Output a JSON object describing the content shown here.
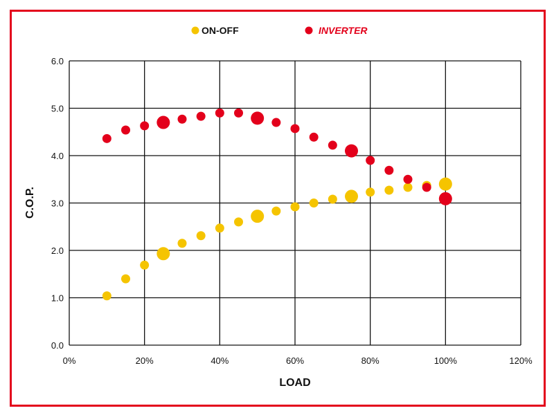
{
  "chart_data": {
    "type": "scatter",
    "xlabel": "LOAD",
    "ylabel": "C.O.P.",
    "xlim": [
      0,
      120
    ],
    "ylim": [
      0,
      6
    ],
    "x_ticks": [
      "0%",
      "20%",
      "40%",
      "60%",
      "80%",
      "100%",
      "120%"
    ],
    "y_ticks": [
      "0.0",
      "1.0",
      "2.0",
      "3.0",
      "4.0",
      "5.0",
      "6.0"
    ],
    "grid": true,
    "legend": "top",
    "big_marker_x": [
      25,
      50,
      75,
      100
    ],
    "series": [
      {
        "name": "ON-OFF",
        "color": "#f5c400",
        "x": [
          10,
          15,
          20,
          25,
          30,
          35,
          40,
          45,
          50,
          55,
          60,
          65,
          70,
          75,
          80,
          85,
          90,
          95,
          100
        ],
        "y": [
          1.04,
          1.4,
          1.69,
          1.93,
          2.15,
          2.31,
          2.47,
          2.6,
          2.72,
          2.83,
          2.92,
          3.0,
          3.08,
          3.14,
          3.23,
          3.27,
          3.33,
          3.37,
          3.4
        ]
      },
      {
        "name": "INVERTER",
        "color": "#e3001b",
        "x": [
          10,
          15,
          20,
          25,
          30,
          35,
          40,
          45,
          50,
          55,
          60,
          65,
          70,
          75,
          80,
          85,
          90,
          95,
          100
        ],
        "y": [
          4.36,
          4.54,
          4.63,
          4.7,
          4.77,
          4.83,
          4.9,
          4.9,
          4.79,
          4.7,
          4.57,
          4.39,
          4.22,
          4.1,
          3.9,
          3.69,
          3.5,
          3.33,
          3.09
        ]
      }
    ]
  },
  "frame_color": "#e3001b"
}
